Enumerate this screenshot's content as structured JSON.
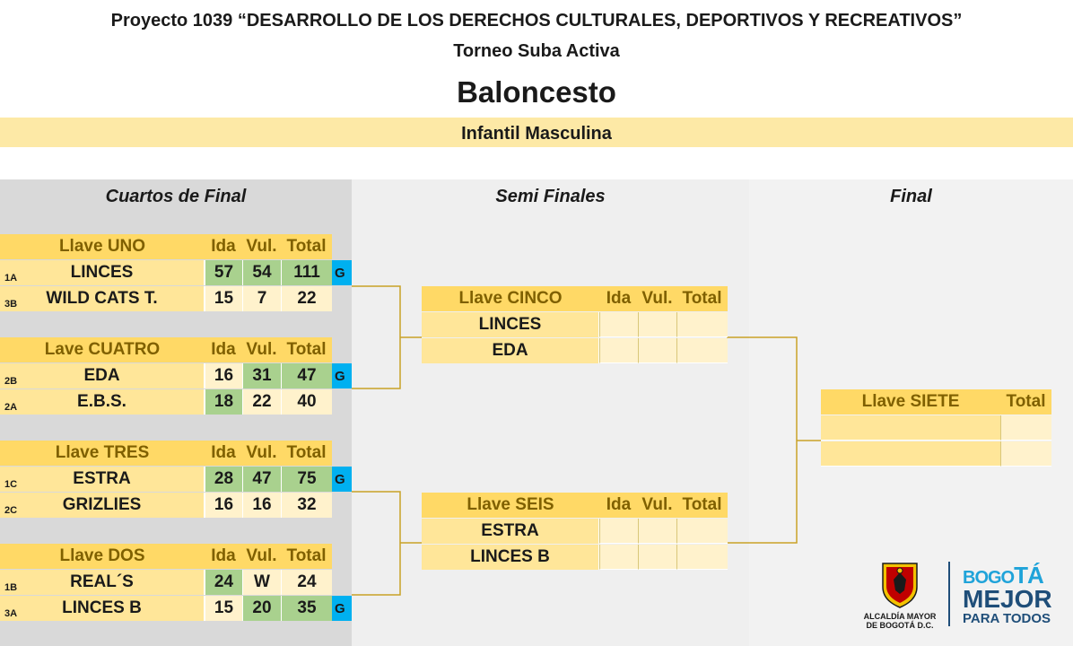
{
  "header": {
    "project": "Proyecto 1039 “DESARROLLO DE LOS DERECHOS CULTURALES, DEPORTIVOS Y RECREATIVOS”",
    "tournament": "Torneo Suba Activa",
    "sport": "Baloncesto",
    "category": "Infantil Masculina"
  },
  "rounds": {
    "quarters": "Cuartos de Final",
    "semis": "Semi Finales",
    "final": "Final"
  },
  "col_headers": {
    "ida": "Ida",
    "vul": "Vul.",
    "total": "Total"
  },
  "winner_mark": "G",
  "quarters": [
    {
      "title": "Llave UNO",
      "teams": [
        {
          "seed": "1A",
          "name": "LINCES",
          "ida": "57",
          "vul": "54",
          "total": "111"
        },
        {
          "seed": "3B",
          "name": "WILD CATS T.",
          "ida": "15",
          "vul": "7",
          "total": "22"
        }
      ]
    },
    {
      "title": "Lave CUATRO",
      "teams": [
        {
          "seed": "2B",
          "name": "EDA",
          "ida": "16",
          "vul": "31",
          "total": "47"
        },
        {
          "seed": "2A",
          "name": "E.B.S.",
          "ida": "18",
          "vul": "22",
          "total": "40"
        }
      ]
    },
    {
      "title": "Llave TRES",
      "teams": [
        {
          "seed": "1C",
          "name": "ESTRA",
          "ida": "28",
          "vul": "47",
          "total": "75"
        },
        {
          "seed": "2C",
          "name": "GRIZLIES",
          "ida": "16",
          "vul": "16",
          "total": "32"
        }
      ]
    },
    {
      "title": "Llave DOS",
      "teams": [
        {
          "seed": "1B",
          "name": "REAL´S",
          "ida": "24",
          "vul": "W",
          "total": "24"
        },
        {
          "seed": "3A",
          "name": "LINCES B",
          "ida": "15",
          "vul": "20",
          "total": "35"
        }
      ]
    }
  ],
  "semis": [
    {
      "title": "Llave CINCO",
      "teams": [
        {
          "name": "LINCES"
        },
        {
          "name": "EDA"
        }
      ]
    },
    {
      "title": "Llave SEIS",
      "teams": [
        {
          "name": "ESTRA"
        },
        {
          "name": "LINCES B"
        }
      ]
    }
  ],
  "final": {
    "title": "Llave SIETE",
    "total": "Total"
  },
  "logo": {
    "line1": "ALCALDÍA MAYOR",
    "line2": "DE BOGOTÁ D.C.",
    "brand_top_a": "BOGO",
    "brand_top_b": "TÁ",
    "brand_mid": "MEJOR",
    "brand_bot": "PARA TODOS"
  },
  "colors": {
    "header_gold": "#ffd966",
    "team_yellow": "#ffe699",
    "score_cream": "#fff2cc",
    "score_green": "#a9d18e",
    "winner_blue": "#00b0f0",
    "bracket_line": "#c9a227",
    "brand_navy": "#1f4e79",
    "brand_blue": "#1fa3d9"
  }
}
